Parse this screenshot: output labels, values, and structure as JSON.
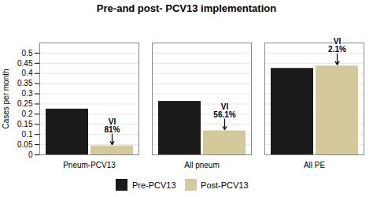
{
  "chart_data": {
    "type": "bar",
    "title": "Pre-and post- PCV13 implementation",
    "ylabel": "Cases per month",
    "categories": [
      "Pneum-PCV13",
      "All pneum",
      "All PE"
    ],
    "series": [
      {
        "name": "Pre-PCV13",
        "color": "#1a1a1a",
        "values": [
          0.225,
          0.263,
          0.425
        ]
      },
      {
        "name": "Post-PCV13",
        "color": "#d4c99a",
        "values": [
          0.044,
          0.118,
          0.437
        ]
      }
    ],
    "ylim": [
      0,
      0.55
    ],
    "yticks": [
      0,
      0.05,
      0.1,
      0.15,
      0.2,
      0.25,
      0.3,
      0.35,
      0.4,
      0.45,
      0.5
    ],
    "grid": true,
    "legend": "bottom",
    "annotations": [
      {
        "text": "VI\n81%",
        "category": "Pneum-PCV13",
        "series": "Post-PCV13"
      },
      {
        "text": "VI\n56.1%",
        "category": "All pneum",
        "series": "Post-PCV13"
      },
      {
        "text": "VI\n2.1%",
        "category": "All PE",
        "series": "Post-PCV13"
      }
    ]
  }
}
